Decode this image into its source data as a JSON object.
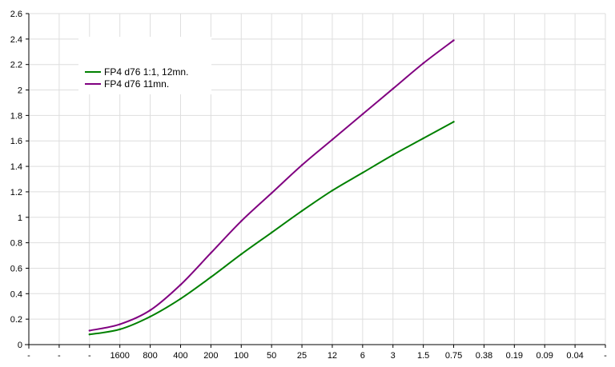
{
  "chart_data": {
    "type": "line",
    "title": "",
    "xlabel": "",
    "ylabel": "",
    "categories": [
      "-",
      "-",
      "-",
      "1600",
      "800",
      "400",
      "200",
      "100",
      "50",
      "25",
      "12",
      "6",
      "3",
      "1.5",
      "0.75",
      "0.38",
      "0.19",
      "0.09",
      "0.04",
      "-"
    ],
    "ylim": [
      0,
      2.6
    ],
    "yticks": [
      0,
      0.2,
      0.4,
      0.6,
      0.8,
      1,
      1.2,
      1.4,
      1.6,
      1.8,
      2,
      2.2,
      2.4,
      2.6
    ],
    "grid": true,
    "legend": "top-left",
    "series": [
      {
        "name": "FP4 d76 1:1, 12mn.",
        "color": "#008000",
        "values": [
          null,
          null,
          0.08,
          0.12,
          0.22,
          0.36,
          0.53,
          0.71,
          0.88,
          1.05,
          1.21,
          1.35,
          1.49,
          1.62,
          1.75,
          null,
          null,
          null,
          null,
          null
        ]
      },
      {
        "name": "FP4 d76 11mn.",
        "color": "#800080",
        "values": [
          null,
          null,
          0.11,
          0.16,
          0.27,
          0.47,
          0.72,
          0.97,
          1.19,
          1.41,
          1.61,
          1.81,
          2.01,
          2.21,
          2.39,
          null,
          null,
          null,
          null,
          null
        ]
      }
    ]
  }
}
